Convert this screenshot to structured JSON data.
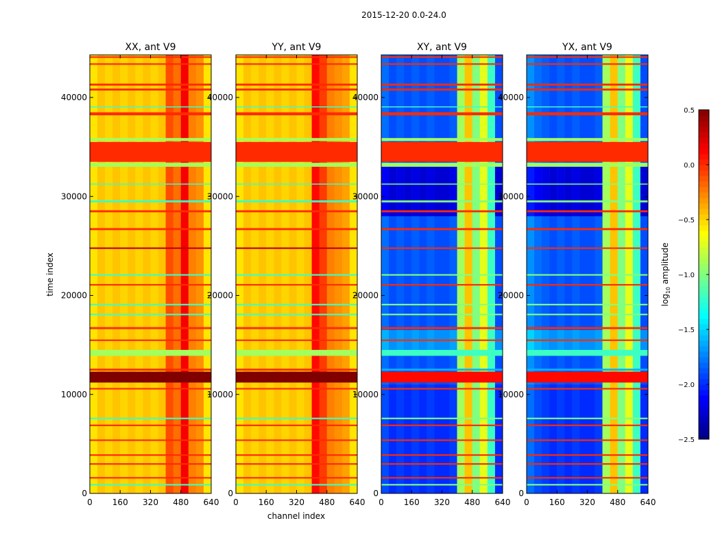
{
  "chart_data": {
    "type": "heatmap",
    "suptitle": "2015-12-20 0.0-24.0",
    "xlabel": "channel index",
    "ylabel": "time index",
    "xlim": [
      0,
      640
    ],
    "ylim": [
      0,
      44300
    ],
    "xticks": [
      0,
      160,
      320,
      480,
      640
    ],
    "yticks": [
      0,
      10000,
      20000,
      30000,
      40000
    ],
    "channel_bin_edges": [
      0,
      40,
      80,
      120,
      160,
      200,
      240,
      280,
      320,
      360,
      400,
      440,
      480,
      520,
      560,
      600,
      640
    ],
    "colorbar": {
      "label": "log10 amplitude",
      "label_main": "log",
      "label_sub": "10",
      "label_rest": " amplitude",
      "range": [
        -2.5,
        0.5
      ],
      "ticks": [
        "−2.5",
        "−2.0",
        "−1.5",
        "−1.0",
        "−0.5",
        "0.0",
        "0.5"
      ],
      "tick_values": [
        -2.5,
        -2.0,
        -1.5,
        -1.0,
        -0.5,
        0.0,
        0.5
      ],
      "colormap": "jet"
    },
    "panels": [
      {
        "title": "XX, ant V9",
        "kind": "auto",
        "channel_profile": [
          -0.55,
          -0.45,
          -0.5,
          -0.45,
          -0.5,
          -0.45,
          -0.5,
          -0.45,
          -0.5,
          -0.45,
          -0.1,
          -0.2,
          0.15,
          -0.25,
          -0.3,
          -0.55
        ]
      },
      {
        "title": "YY, ant V9",
        "kind": "auto",
        "channel_profile": [
          -0.55,
          -0.45,
          -0.5,
          -0.45,
          -0.5,
          -0.45,
          -0.5,
          -0.45,
          -0.5,
          -0.45,
          0.1,
          -0.05,
          -0.25,
          -0.3,
          -0.35,
          -0.55
        ]
      },
      {
        "title": "XY, ant V9",
        "kind": "cross",
        "channel_profile": [
          -1.8,
          -1.9,
          -1.85,
          -1.9,
          -1.85,
          -1.9,
          -1.85,
          -1.9,
          -1.9,
          -1.85,
          -0.9,
          -0.45,
          -1.0,
          -0.7,
          -1.2,
          -1.9
        ]
      },
      {
        "title": "YX, ant V9",
        "kind": "cross",
        "channel_profile": [
          -1.7,
          -1.8,
          -1.85,
          -1.9,
          -1.85,
          -1.9,
          -1.85,
          -1.9,
          -1.9,
          -1.85,
          -0.9,
          -0.45,
          -1.0,
          -0.7,
          -1.2,
          -1.9
        ]
      }
    ],
    "time_stripes": [
      {
        "t0": 33500,
        "t1": 35500,
        "auto": 0.0,
        "cross": 0.0
      },
      {
        "t0": 35600,
        "t1": 35900,
        "auto": -0.9,
        "cross": -0.9
      },
      {
        "t0": 33000,
        "t1": 33400,
        "auto": -0.9,
        "cross": -0.9
      },
      {
        "t0": 11200,
        "t1": 12300,
        "auto": 0.5,
        "cross": 0.1
      },
      {
        "t0": 12400,
        "t1": 12600,
        "auto": 0.0,
        "cross": -1.6
      },
      {
        "t0": 13900,
        "t1": 14500,
        "auto": -0.9,
        "cross": -1.2
      },
      {
        "t0": 44000,
        "t1": 44150,
        "auto": 0.0,
        "cross": 0.0
      },
      {
        "t0": 43300,
        "t1": 43450,
        "auto": 0.0,
        "cross": 0.0
      },
      {
        "t0": 41200,
        "t1": 41400,
        "auto": 0.0,
        "cross": 0.0
      },
      {
        "t0": 40700,
        "t1": 40900,
        "auto": 0.0,
        "cross": 0.0
      },
      {
        "t0": 38200,
        "t1": 38500,
        "auto": 0.0,
        "cross": 0.0
      },
      {
        "t0": 39000,
        "t1": 39100,
        "auto": -1.2,
        "cross": -1.2
      },
      {
        "t0": 31200,
        "t1": 31300,
        "auto": -1.2,
        "cross": -1.0
      },
      {
        "t0": 29400,
        "t1": 29600,
        "auto": -1.2,
        "cross": -1.0
      },
      {
        "t0": 28400,
        "t1": 28600,
        "auto": 0.0,
        "cross": 0.0
      },
      {
        "t0": 26600,
        "t1": 26800,
        "auto": 0.0,
        "cross": 0.0
      },
      {
        "t0": 24700,
        "t1": 24850,
        "auto": 0.3,
        "cross": 0.0
      },
      {
        "t0": 22000,
        "t1": 22150,
        "auto": -1.2,
        "cross": -1.0
      },
      {
        "t0": 21000,
        "t1": 21150,
        "auto": 0.0,
        "cross": 0.0
      },
      {
        "t0": 19000,
        "t1": 19150,
        "auto": -1.2,
        "cross": -1.0
      },
      {
        "t0": 18000,
        "t1": 18150,
        "auto": -1.2,
        "cross": -1.0
      },
      {
        "t0": 16600,
        "t1": 16800,
        "auto": 0.0,
        "cross": 0.0
      },
      {
        "t0": 15400,
        "t1": 15550,
        "auto": 0.0,
        "cross": 0.0
      },
      {
        "t0": 10500,
        "t1": 10650,
        "auto": 0.0,
        "cross": 0.0
      },
      {
        "t0": 7500,
        "t1": 7650,
        "auto": -1.2,
        "cross": -1.0
      },
      {
        "t0": 6800,
        "t1": 6950,
        "auto": 0.0,
        "cross": 0.0
      },
      {
        "t0": 5300,
        "t1": 5450,
        "auto": 0.0,
        "cross": 0.0
      },
      {
        "t0": 3800,
        "t1": 3950,
        "auto": 0.0,
        "cross": 0.0
      },
      {
        "t0": 2900,
        "t1": 3050,
        "auto": 0.0,
        "cross": 0.0
      },
      {
        "t0": 1500,
        "t1": 1650,
        "auto": 0.0,
        "cross": 0.0
      },
      {
        "t0": 800,
        "t1": 950,
        "auto": -1.2,
        "cross": -1.0
      }
    ],
    "cross_background_regions": [
      {
        "t0": 28000,
        "t1": 33000,
        "offset": -0.35
      },
      {
        "t0": 14500,
        "t1": 16500,
        "offset": 0.2
      },
      {
        "t0": 0,
        "t1": 11000,
        "offset": -0.1
      }
    ]
  }
}
